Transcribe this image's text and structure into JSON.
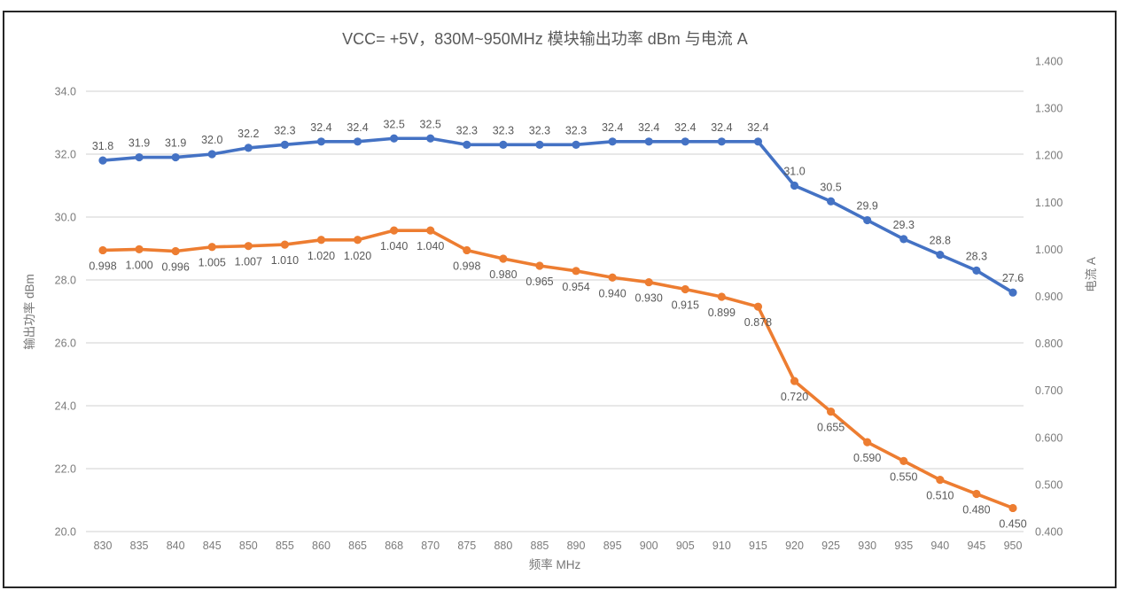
{
  "chart_data": {
    "type": "line",
    "title": "VCC= +5V，830M~950MHz 模块输出功率 dBm 与电流 A",
    "xlabel": "频率 MHz",
    "categories": [
      "830",
      "835",
      "840",
      "845",
      "850",
      "855",
      "860",
      "865",
      "868",
      "870",
      "875",
      "880",
      "885",
      "890",
      "895",
      "900",
      "905",
      "910",
      "915",
      "920",
      "925",
      "930",
      "935",
      "940",
      "945",
      "950"
    ],
    "y_left": {
      "label": "输出功率 dBm",
      "min": 20,
      "max": 35,
      "ticks": [
        "34.0",
        "32.0",
        "30.0",
        "28.0",
        "26.0",
        "24.0",
        "22.0",
        "20.0"
      ]
    },
    "y_right": {
      "label": "电流 A",
      "min": 0.4,
      "max": 1.4,
      "ticks": [
        "1.400",
        "1.300",
        "1.200",
        "1.100",
        "1.000",
        "0.900",
        "0.800",
        "0.700",
        "0.600",
        "0.500",
        "0.400"
      ]
    },
    "grid": "horizontal-only",
    "legend": "none",
    "series": [
      {
        "name": "输出功率 dBm",
        "axis": "left",
        "color": "#4472C4",
        "label_position": "above",
        "values": [
          31.8,
          31.9,
          31.9,
          32.0,
          32.2,
          32.3,
          32.4,
          32.4,
          32.5,
          32.5,
          32.3,
          32.3,
          32.3,
          32.3,
          32.4,
          32.4,
          32.4,
          32.4,
          32.4,
          31.0,
          30.5,
          29.9,
          29.3,
          28.8,
          28.3,
          27.6
        ],
        "labels": [
          "31.8",
          "31.9",
          "31.9",
          "32.0",
          "32.2",
          "32.3",
          "32.4",
          "32.4",
          "32.5",
          "32.5",
          "32.3",
          "32.3",
          "32.3",
          "32.3",
          "32.4",
          "32.4",
          "32.4",
          "32.4",
          "32.4",
          "31.0",
          "30.5",
          "29.9",
          "29.3",
          "28.8",
          "28.3",
          "27.6"
        ]
      },
      {
        "name": "电流 A",
        "axis": "right",
        "color": "#ED7D31",
        "label_position": "below",
        "values": [
          0.998,
          1.0,
          0.996,
          1.005,
          1.007,
          1.01,
          1.02,
          1.02,
          1.04,
          1.04,
          0.998,
          0.98,
          0.965,
          0.954,
          0.94,
          0.93,
          0.915,
          0.899,
          0.878,
          0.72,
          0.655,
          0.59,
          0.55,
          0.51,
          0.48,
          0.45
        ],
        "labels": [
          "0.998",
          "1.000",
          "0.996",
          "1.005",
          "1.007",
          "1.010",
          "1.020",
          "1.020",
          "1.040",
          "1.040",
          "0.998",
          "0.980",
          "0.965",
          "0.954",
          "0.940",
          "0.930",
          "0.915",
          "0.899",
          "0.878",
          "0.720",
          "0.655",
          "0.590",
          "0.550",
          "0.510",
          "0.480",
          "0.450"
        ]
      }
    ],
    "colors": {
      "power_series": "#4472C4",
      "current_series": "#ED7D31",
      "gridline": "#D9D9D9",
      "frame_border": "#262626",
      "tick_text": "#7b7b7b",
      "title_text": "#595959"
    }
  }
}
